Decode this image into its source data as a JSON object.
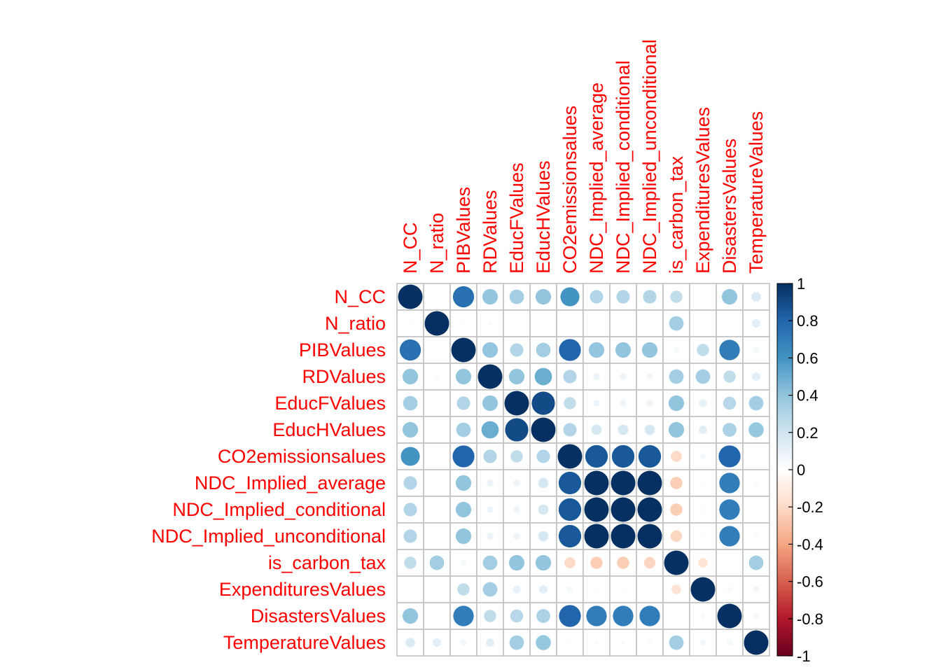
{
  "chart_data": {
    "type": "heatmap",
    "style": "corrplot-circle",
    "variables": [
      "N_CC",
      "N_ratio",
      "PIBValues",
      "RDValues",
      "EducFValues",
      "EducHValues",
      "CO2emissionsalues",
      "NDC_Implied_average",
      "NDC_Implied_conditional",
      "NDC_Implied_unconditional",
      "is_carbon_tax",
      "ExpendituresValues",
      "DisastersValues",
      "TemperatureValues"
    ],
    "matrix": [
      [
        1.0,
        0.02,
        0.75,
        0.4,
        0.35,
        0.4,
        0.6,
        0.3,
        0.3,
        0.3,
        0.25,
        0.0,
        0.4,
        0.15
      ],
      [
        0.02,
        1.0,
        0.02,
        0.03,
        0.01,
        0.02,
        0.0,
        0.0,
        0.0,
        0.0,
        0.35,
        0.01,
        0.01,
        0.12
      ],
      [
        0.75,
        0.02,
        1.0,
        0.4,
        0.3,
        0.35,
        0.8,
        0.4,
        0.4,
        0.4,
        0.05,
        0.25,
        0.7,
        0.06
      ],
      [
        0.4,
        0.03,
        0.4,
        1.0,
        0.4,
        0.5,
        0.3,
        0.08,
        0.08,
        0.06,
        0.35,
        0.35,
        0.25,
        0.12
      ],
      [
        0.35,
        0.01,
        0.3,
        0.4,
        1.0,
        0.9,
        0.25,
        0.08,
        0.08,
        0.08,
        0.4,
        0.1,
        0.28,
        0.35
      ],
      [
        0.4,
        0.02,
        0.35,
        0.5,
        0.9,
        1.0,
        0.3,
        0.18,
        0.18,
        0.18,
        0.4,
        0.12,
        0.32,
        0.38
      ],
      [
        0.6,
        0.0,
        0.8,
        0.3,
        0.25,
        0.3,
        1.0,
        0.85,
        0.85,
        0.85,
        -0.2,
        0.05,
        0.8,
        0.02
      ],
      [
        0.3,
        0.0,
        0.4,
        0.08,
        0.08,
        0.18,
        0.85,
        1.0,
        1.0,
        1.0,
        -0.25,
        0.02,
        0.7,
        0.03
      ],
      [
        0.3,
        0.0,
        0.4,
        0.08,
        0.08,
        0.18,
        0.85,
        1.0,
        1.0,
        1.0,
        -0.25,
        0.02,
        0.7,
        0.03
      ],
      [
        0.3,
        0.0,
        0.4,
        0.08,
        0.08,
        0.18,
        0.85,
        1.0,
        1.0,
        1.0,
        -0.22,
        0.02,
        0.7,
        0.03
      ],
      [
        0.25,
        0.35,
        0.05,
        0.35,
        0.4,
        0.4,
        -0.2,
        -0.25,
        -0.25,
        -0.22,
        1.0,
        -0.15,
        0.0,
        0.35
      ],
      [
        0.0,
        0.01,
        0.25,
        0.35,
        0.1,
        0.12,
        0.05,
        0.02,
        0.02,
        0.02,
        -0.15,
        1.0,
        0.04,
        0.06
      ],
      [
        0.4,
        0.01,
        0.7,
        0.25,
        0.28,
        0.32,
        0.8,
        0.7,
        0.7,
        0.7,
        0.0,
        0.04,
        1.0,
        0.05
      ],
      [
        0.15,
        0.12,
        0.06,
        0.12,
        0.35,
        0.38,
        0.02,
        0.03,
        0.03,
        0.03,
        0.35,
        0.06,
        0.05,
        1.0
      ]
    ],
    "colorbar": {
      "range": [
        -1,
        1
      ],
      "ticks": [
        "1",
        "0.8",
        "0.6",
        "0.4",
        "0.2",
        "0",
        "-0.2",
        "-0.4",
        "-0.6",
        "-0.8",
        "-1"
      ]
    },
    "colors": {
      "label": "#FF0000",
      "grid": "#BEBEBE",
      "stops": [
        "#67001F",
        "#B2182B",
        "#D6604D",
        "#F4A582",
        "#FDDBC7",
        "#FFFFFF",
        "#D1E5F0",
        "#92C5DE",
        "#4393C3",
        "#2166AC",
        "#053061"
      ]
    }
  }
}
